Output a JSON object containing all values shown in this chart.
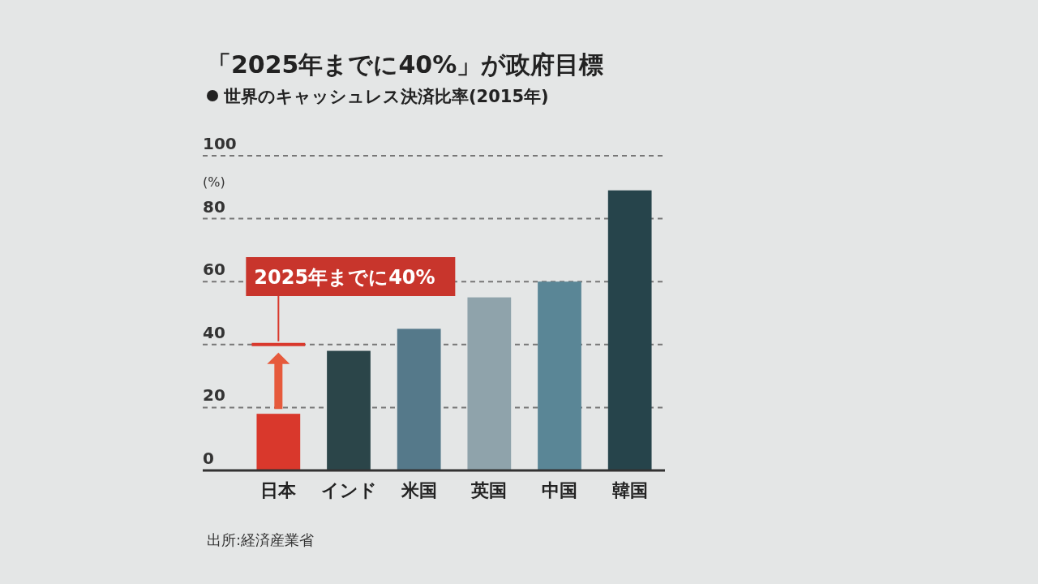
{
  "chart_data": {
    "type": "bar",
    "title": "「2025年までに40%」が政府目標",
    "subtitle": "世界のキャッシュレス決済比率(2015年)",
    "ylabel": "(%)",
    "categories": [
      "日本",
      "インド",
      "米国",
      "英国",
      "中国",
      "韓国"
    ],
    "values": [
      18,
      38,
      45,
      55,
      60,
      89
    ],
    "colors": [
      "#d9382c",
      "#2b4549",
      "#55798a",
      "#8fa3ab",
      "#5a8696",
      "#26444b"
    ],
    "ylim": [
      0,
      100
    ],
    "yticks": [
      0,
      20,
      40,
      60,
      80,
      100
    ],
    "grid": "y",
    "ref_lines": [
      {
        "axis": "y",
        "value": 40,
        "label": "2025年までに40%",
        "color": "#d9382c"
      }
    ],
    "annotations": [
      "出所:経済産業省"
    ]
  }
}
